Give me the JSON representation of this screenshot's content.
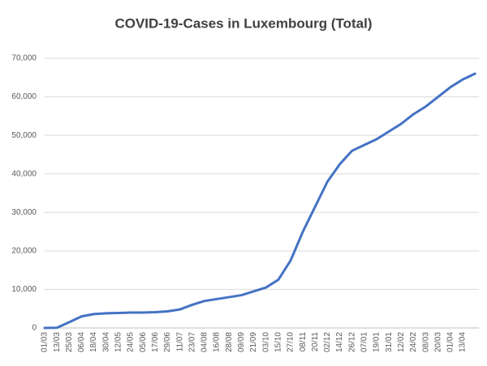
{
  "chart_data": {
    "type": "line",
    "title": "COVID-19-Cases in Luxembourg (Total)",
    "categories": [
      "01/03",
      "13/03",
      "25/03",
      "06/04",
      "18/04",
      "30/04",
      "12/05",
      "24/05",
      "05/06",
      "17/06",
      "29/06",
      "11/07",
      "23/07",
      "04/08",
      "16/08",
      "28/08",
      "09/09",
      "21/09",
      "03/10",
      "15/10",
      "27/10",
      "08/11",
      "20/11",
      "02/12",
      "14/12",
      "26/12",
      "07/01",
      "19/01",
      "31/01",
      "12/02",
      "24/02",
      "08/03",
      "20/03",
      "01/04",
      "13/04",
      null
    ],
    "series": [
      {
        "name": "Total",
        "color": "#4472c4",
        "values": [
          0,
          50,
          1500,
          3000,
          3600,
          3800,
          3900,
          3990,
          4000,
          4100,
          4300,
          4800,
          6000,
          7000,
          7500,
          8000,
          8500,
          9500,
          10500,
          12500,
          17500,
          25000,
          31500,
          38000,
          42500,
          46000,
          47500,
          49000,
          51000,
          53000,
          55500,
          57500,
          60000,
          62500,
          64500,
          66000
        ]
      }
    ],
    "ylim": [
      0,
      70000
    ],
    "yticks": [
      0,
      {
        "value": 10000,
        "label": "10,000"
      },
      {
        "value": 20000,
        "label": "20,000"
      },
      {
        "value": 30000,
        "label": "30,000"
      },
      {
        "value": 40000,
        "label": "40,000"
      },
      {
        "value": 50000,
        "label": "50,000"
      },
      {
        "value": 60000,
        "label": "60,000"
      },
      {
        "value": 70000,
        "label": "70,000"
      }
    ],
    "grid": true
  }
}
